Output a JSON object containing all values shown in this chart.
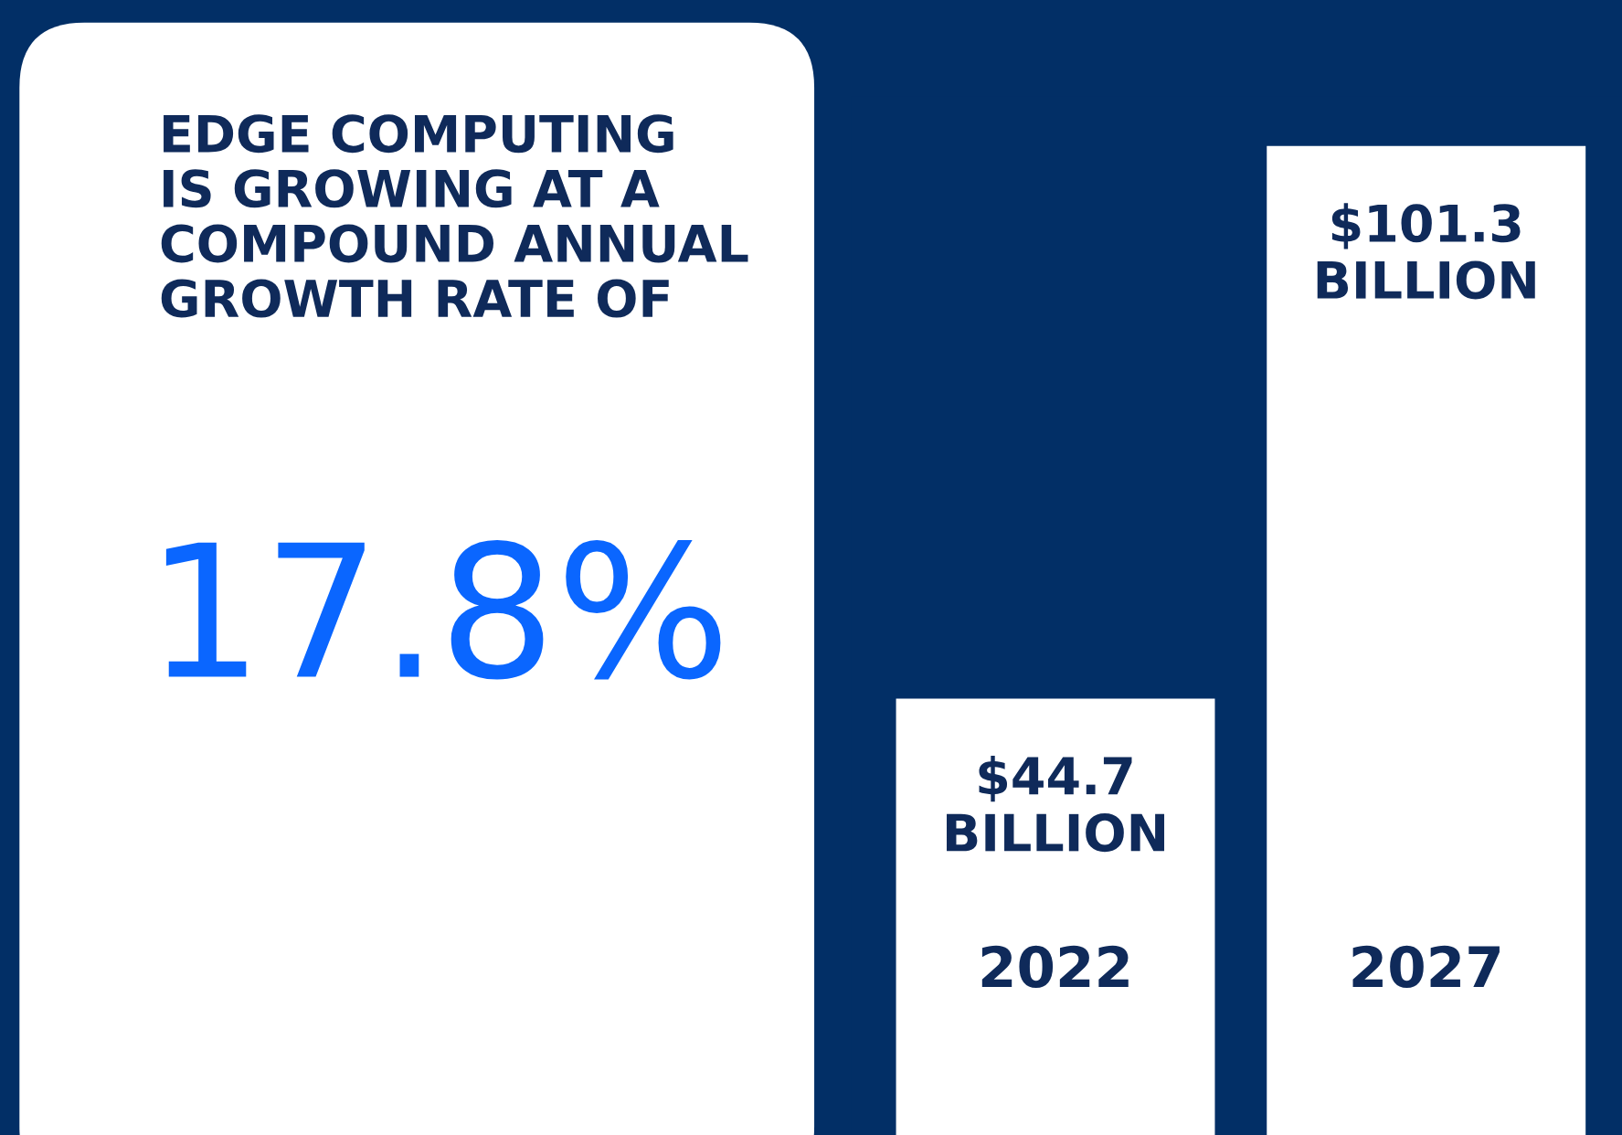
{
  "chart_data": {
    "type": "bar",
    "title": "EDGE COMPUTING\nIS GROWING AT A\nCOMPOUND ANNUAL\nGROWTH RATE OF",
    "annotations": [
      "17.8%"
    ],
    "categories": [
      "2022",
      "2027"
    ],
    "values": [
      44.7,
      101.3
    ],
    "value_labels": [
      "$44.7\nBILLION",
      "$101.3\nBILLION"
    ],
    "color": "#ffffff",
    "tick_labels": "x",
    "grid": false,
    "legend": false
  }
}
